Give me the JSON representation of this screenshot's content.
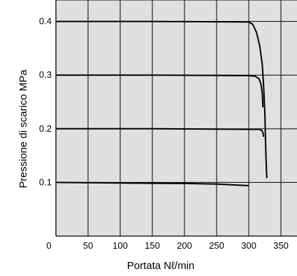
{
  "chart_data": {
    "type": "line",
    "title": "",
    "xlabel": "Portata Nℓ/min",
    "ylabel": "Pressione di scarico  MPa",
    "xlim": [
      0,
      375
    ],
    "ylim": [
      0,
      0.44
    ],
    "x_ticks": [
      0,
      50,
      100,
      150,
      200,
      250,
      300,
      350
    ],
    "x_tick_labels": [
      "0",
      "50",
      "100",
      "150",
      "200",
      "250",
      "300",
      "350"
    ],
    "y_ticks": [
      0.1,
      0.2,
      0.3,
      0.4
    ],
    "y_tick_labels": [
      "0.1",
      "0.2",
      "0.3",
      "0.4"
    ],
    "grid": true,
    "colors": {
      "plot_background": "#e0e0e0",
      "grid": "#000000",
      "line": "#000000"
    },
    "series": [
      {
        "points": [
          [
            0,
            0.1
          ],
          [
            100,
            0.099
          ],
          [
            200,
            0.098
          ],
          [
            250,
            0.097
          ],
          [
            300,
            0.094
          ]
        ]
      },
      {
        "points": [
          [
            0,
            0.2
          ],
          [
            150,
            0.2
          ],
          [
            300,
            0.199
          ],
          [
            317,
            0.199
          ],
          [
            320,
            0.197
          ],
          [
            322,
            0.193
          ],
          [
            323,
            0.185
          ]
        ]
      },
      {
        "points": [
          [
            0,
            0.3
          ],
          [
            150,
            0.3
          ],
          [
            300,
            0.299
          ],
          [
            310,
            0.298
          ],
          [
            316,
            0.293
          ],
          [
            319,
            0.283
          ],
          [
            321,
            0.265
          ],
          [
            322,
            0.24
          ]
        ]
      },
      {
        "points": [
          [
            0,
            0.4
          ],
          [
            150,
            0.4
          ],
          [
            300,
            0.399
          ],
          [
            306,
            0.395
          ],
          [
            312,
            0.38
          ],
          [
            317,
            0.355
          ],
          [
            321,
            0.32
          ],
          [
            323,
            0.28
          ],
          [
            325,
            0.23
          ],
          [
            326,
            0.18
          ],
          [
            327,
            0.14
          ],
          [
            328,
            0.108
          ]
        ]
      }
    ]
  }
}
